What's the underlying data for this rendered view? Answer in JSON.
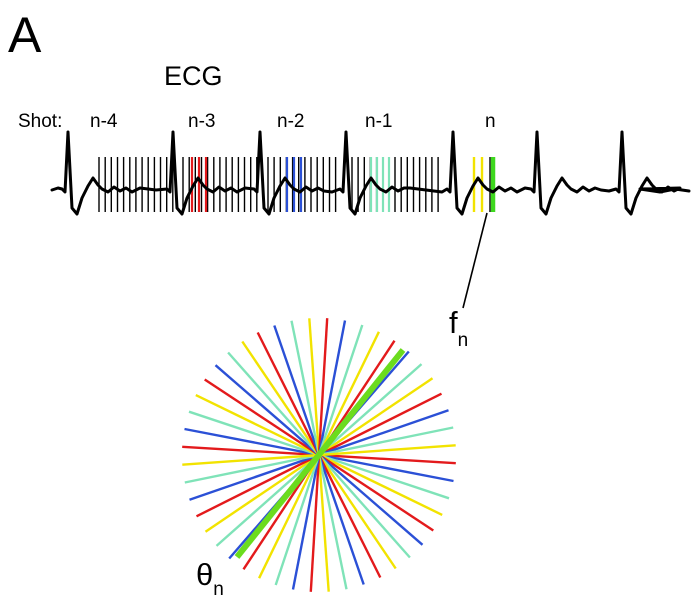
{
  "panel_label": "A",
  "ecg_title": "ECG",
  "shot_prefix": "Shot:",
  "shots": [
    {
      "label": "n-4",
      "color": "#000000"
    },
    {
      "label": "n-3",
      "color": "#e31a1c"
    },
    {
      "label": "n-2",
      "color": "#2b50d6"
    },
    {
      "label": "n-1",
      "color": "#8a8a8a"
    },
    {
      "label": "n",
      "color": "#000000"
    }
  ],
  "segment_colors": {
    "n-4": "#000000",
    "n-3": "#e31a1c",
    "n-2": "#2b50d6",
    "n-1": "#7fe3b8",
    "n_prev": "#f2e300",
    "n_current": "#3ed81e"
  },
  "frame_marker": {
    "symbol": "f",
    "subscript": "n"
  },
  "angle_marker": {
    "symbol": "θ",
    "subscript": "n"
  },
  "spoke_colors": [
    "#e31a1c",
    "#2b50d6",
    "#7fe3b8",
    "#f2e300"
  ],
  "highlight_spoke_color": "#6bdc1e"
}
